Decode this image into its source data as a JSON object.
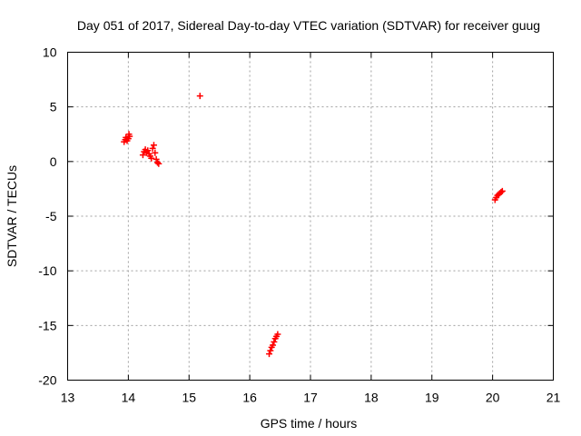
{
  "chart_data": {
    "type": "scatter",
    "title": "Day 051 of 2017, Sidereal Day-to-day VTEC variation (SDTVAR) for receiver guug",
    "xlabel": "GPS time / hours",
    "ylabel": "SDTVAR / TECUs",
    "xlim": [
      13,
      21
    ],
    "ylim": [
      -20,
      10
    ],
    "xticks": [
      "13",
      "14",
      "15",
      "16",
      "17",
      "18",
      "19",
      "20",
      "21"
    ],
    "yticks": [
      "-20",
      "-15",
      "-10",
      "-5",
      "0",
      "5",
      "10"
    ],
    "grid": true,
    "marker": "plus",
    "color": "#ff0000",
    "series": [
      {
        "points": [
          [
            13.93,
            1.8
          ],
          [
            13.95,
            2.0
          ],
          [
            13.96,
            2.2
          ],
          [
            13.98,
            1.9
          ],
          [
            14.0,
            2.1
          ],
          [
            14.01,
            2.5
          ],
          [
            14.02,
            2.3
          ],
          [
            14.24,
            0.6
          ],
          [
            14.26,
            0.9
          ],
          [
            14.28,
            1.1
          ],
          [
            14.3,
            0.8
          ],
          [
            14.32,
            1.0
          ],
          [
            14.34,
            0.7
          ],
          [
            14.36,
            0.5
          ],
          [
            14.38,
            0.3
          ],
          [
            14.4,
            1.2
          ],
          [
            14.42,
            1.5
          ],
          [
            14.44,
            0.8
          ],
          [
            14.46,
            0.2
          ],
          [
            14.48,
            -0.1
          ],
          [
            14.5,
            -0.2
          ],
          [
            15.18,
            6.0
          ],
          [
            16.32,
            -17.6
          ],
          [
            16.34,
            -17.3
          ],
          [
            16.36,
            -17.0
          ],
          [
            16.38,
            -16.8
          ],
          [
            16.4,
            -16.5
          ],
          [
            16.42,
            -16.2
          ],
          [
            16.44,
            -16.0
          ],
          [
            16.46,
            -15.8
          ],
          [
            20.04,
            -3.5
          ],
          [
            20.06,
            -3.3
          ],
          [
            20.08,
            -3.1
          ],
          [
            20.1,
            -3.0
          ],
          [
            20.12,
            -2.9
          ],
          [
            20.14,
            -2.8
          ],
          [
            20.16,
            -2.7
          ]
        ]
      }
    ]
  }
}
